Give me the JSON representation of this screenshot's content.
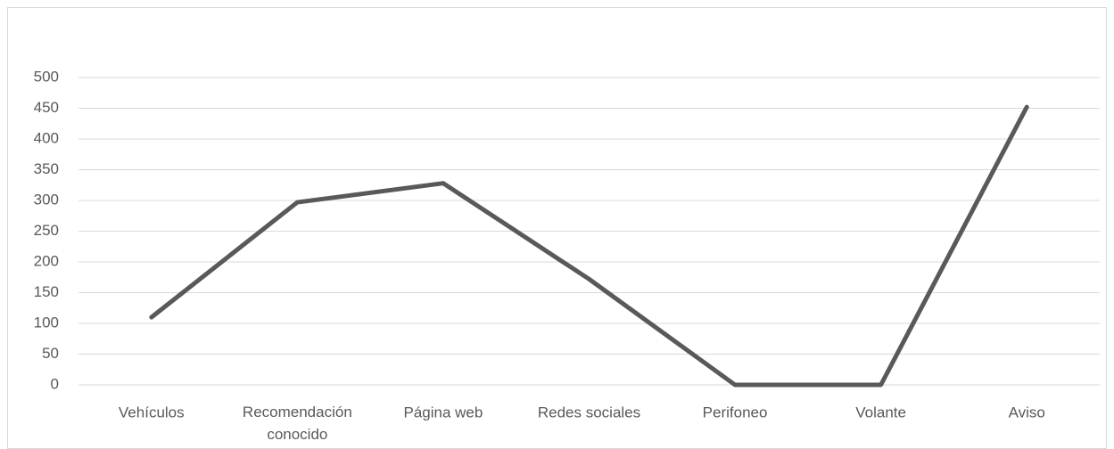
{
  "chart_data": {
    "type": "line",
    "categories": [
      "Vehículos",
      "Recomendación conocido",
      "Página web",
      "Redes sociales",
      "Perifoneo",
      "Volante",
      "Aviso"
    ],
    "series": [
      {
        "color": "#595959",
        "values": [
          110,
          297,
          328,
          172,
          0,
          0,
          452
        ]
      }
    ],
    "ylim": [
      0,
      500
    ],
    "yticks": [
      0,
      50,
      100,
      150,
      200,
      250,
      300,
      350,
      400,
      450,
      500
    ],
    "grid": true
  }
}
